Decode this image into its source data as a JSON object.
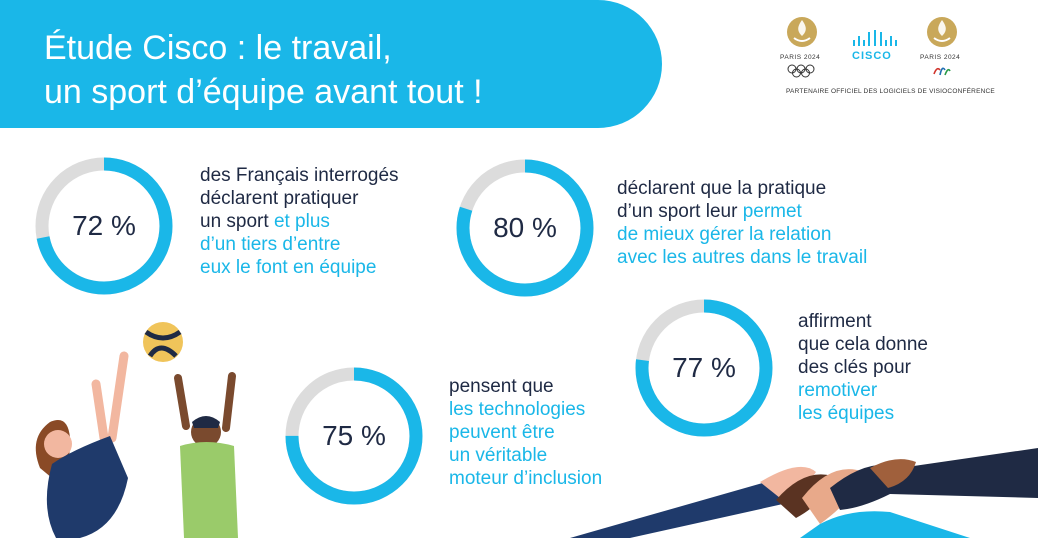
{
  "header": {
    "title_line1": "Étude Cisco : le travail,",
    "title_line2": "un sport d’équipe avant tout !"
  },
  "logos": {
    "left_label": "PARIS 2024",
    "center_label": "CISCO",
    "right_label": "PARIS 2024",
    "tagline": "PARTENAIRE OFFICIEL DES LOGICIELS DE VISIOCONFÉRENCE"
  },
  "stats": [
    {
      "value": "72 %",
      "percent": 72,
      "lines": [
        {
          "text": "des Français interrogés"
        },
        {
          "text": "déclarent pratiquer"
        },
        {
          "text": "un sport ",
          "highlight": "et plus"
        },
        {
          "highlight": "d’un tiers d’entre"
        },
        {
          "highlight": "eux le font en équipe"
        }
      ]
    },
    {
      "value": "80 %",
      "percent": 80,
      "lines": [
        {
          "text": "déclarent que la pratique"
        },
        {
          "text": "d’un sport leur ",
          "highlight": "permet"
        },
        {
          "highlight": "de mieux gérer la relation"
        },
        {
          "highlight": "avec les autres dans le travail"
        }
      ]
    },
    {
      "value": "77 %",
      "percent": 77,
      "lines": [
        {
          "text": "affirment"
        },
        {
          "text": "que cela donne"
        },
        {
          "text": "des clés pour"
        },
        {
          "highlight": "remotiver"
        },
        {
          "highlight": "les équipes"
        }
      ]
    },
    {
      "value": "75 %",
      "percent": 75,
      "lines": [
        {
          "text": "pensent que"
        },
        {
          "highlight": "les technologies"
        },
        {
          "highlight": "peuvent être"
        },
        {
          "highlight": "un véritable"
        },
        {
          "highlight": "moteur d’inclusion"
        }
      ]
    }
  ],
  "colors": {
    "accent": "#1ab7e8",
    "ring_track": "#dcdcdc",
    "text": "#1f2a44"
  },
  "icons": [
    "volleyball-icon",
    "paris-2024-flame-icon",
    "cisco-bridge-icon",
    "olympic-rings-icon",
    "paralympic-agitos-icon"
  ]
}
